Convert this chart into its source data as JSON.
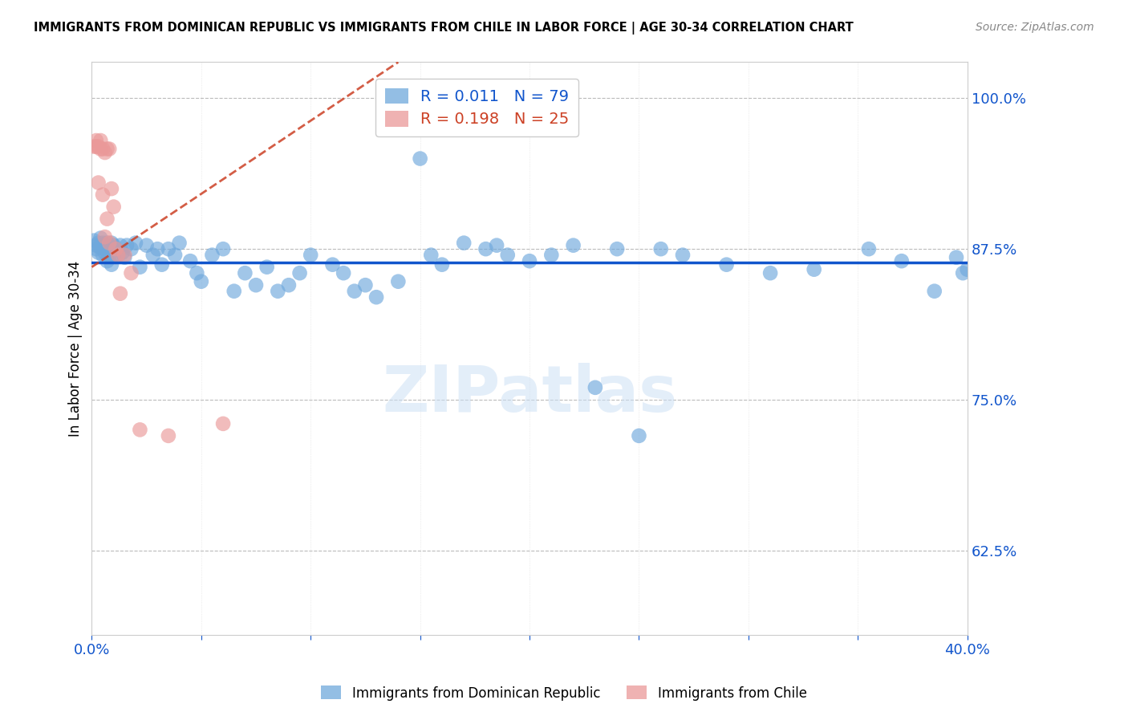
{
  "title": "IMMIGRANTS FROM DOMINICAN REPUBLIC VS IMMIGRANTS FROM CHILE IN LABOR FORCE | AGE 30-34 CORRELATION CHART",
  "source": "Source: ZipAtlas.com",
  "ylabel": "In Labor Force | Age 30-34",
  "xlim": [
    0.0,
    0.4
  ],
  "ylim": [
    0.555,
    1.03
  ],
  "yticks_right": [
    0.625,
    0.75,
    0.875,
    1.0
  ],
  "yticklabels_right": [
    "62.5%",
    "75.0%",
    "87.5%",
    "100.0%"
  ],
  "blue_R": 0.011,
  "blue_N": 79,
  "pink_R": 0.198,
  "pink_N": 25,
  "blue_color": "#6fa8dc",
  "pink_color": "#ea9999",
  "blue_line_color": "#1155cc",
  "pink_line_color": "#cc4125",
  "label_blue": "Immigrants from Dominican Republic",
  "label_pink": "Immigrants from Chile",
  "axis_color": "#1155cc",
  "grid_color": "#bbbbbb",
  "blue_dots_x": [
    0.001,
    0.002,
    0.002,
    0.003,
    0.003,
    0.004,
    0.004,
    0.005,
    0.005,
    0.006,
    0.006,
    0.006,
    0.007,
    0.007,
    0.008,
    0.008,
    0.009,
    0.009,
    0.01,
    0.01,
    0.011,
    0.012,
    0.013,
    0.014,
    0.015,
    0.016,
    0.018,
    0.02,
    0.022,
    0.025,
    0.028,
    0.03,
    0.032,
    0.035,
    0.038,
    0.04,
    0.045,
    0.048,
    0.05,
    0.055,
    0.06,
    0.065,
    0.07,
    0.075,
    0.08,
    0.085,
    0.09,
    0.095,
    0.1,
    0.11,
    0.115,
    0.12,
    0.125,
    0.13,
    0.14,
    0.15,
    0.155,
    0.16,
    0.17,
    0.18,
    0.185,
    0.19,
    0.2,
    0.21,
    0.22,
    0.23,
    0.24,
    0.25,
    0.26,
    0.27,
    0.29,
    0.31,
    0.33,
    0.355,
    0.37,
    0.385,
    0.395,
    0.398,
    0.4
  ],
  "blue_dots_y": [
    0.882,
    0.878,
    0.875,
    0.88,
    0.872,
    0.876,
    0.884,
    0.87,
    0.88,
    0.872,
    0.875,
    0.878,
    0.865,
    0.88,
    0.875,
    0.87,
    0.88,
    0.862,
    0.878,
    0.87,
    0.875,
    0.87,
    0.878,
    0.872,
    0.868,
    0.878,
    0.875,
    0.88,
    0.86,
    0.878,
    0.87,
    0.875,
    0.862,
    0.875,
    0.87,
    0.88,
    0.865,
    0.855,
    0.848,
    0.87,
    0.875,
    0.84,
    0.855,
    0.845,
    0.86,
    0.84,
    0.845,
    0.855,
    0.87,
    0.862,
    0.855,
    0.84,
    0.845,
    0.835,
    0.848,
    0.95,
    0.87,
    0.862,
    0.88,
    0.875,
    0.878,
    0.87,
    0.865,
    0.87,
    0.878,
    0.76,
    0.875,
    0.72,
    0.875,
    0.87,
    0.862,
    0.855,
    0.858,
    0.875,
    0.865,
    0.84,
    0.868,
    0.855,
    0.858
  ],
  "pink_dots_x": [
    0.001,
    0.002,
    0.002,
    0.003,
    0.003,
    0.004,
    0.004,
    0.005,
    0.005,
    0.006,
    0.006,
    0.007,
    0.007,
    0.008,
    0.008,
    0.009,
    0.01,
    0.011,
    0.012,
    0.013,
    0.015,
    0.018,
    0.022,
    0.035,
    0.06
  ],
  "pink_dots_y": [
    0.96,
    0.96,
    0.965,
    0.96,
    0.93,
    0.965,
    0.958,
    0.958,
    0.92,
    0.955,
    0.885,
    0.958,
    0.9,
    0.958,
    0.88,
    0.925,
    0.91,
    0.875,
    0.87,
    0.838,
    0.87,
    0.855,
    0.725,
    0.72,
    0.73
  ],
  "blue_line_x": [
    0.0,
    0.4
  ],
  "blue_line_y": [
    0.8635,
    0.8635
  ],
  "pink_line_x": [
    0.0,
    0.14
  ],
  "pink_line_y": [
    0.86,
    1.03
  ]
}
